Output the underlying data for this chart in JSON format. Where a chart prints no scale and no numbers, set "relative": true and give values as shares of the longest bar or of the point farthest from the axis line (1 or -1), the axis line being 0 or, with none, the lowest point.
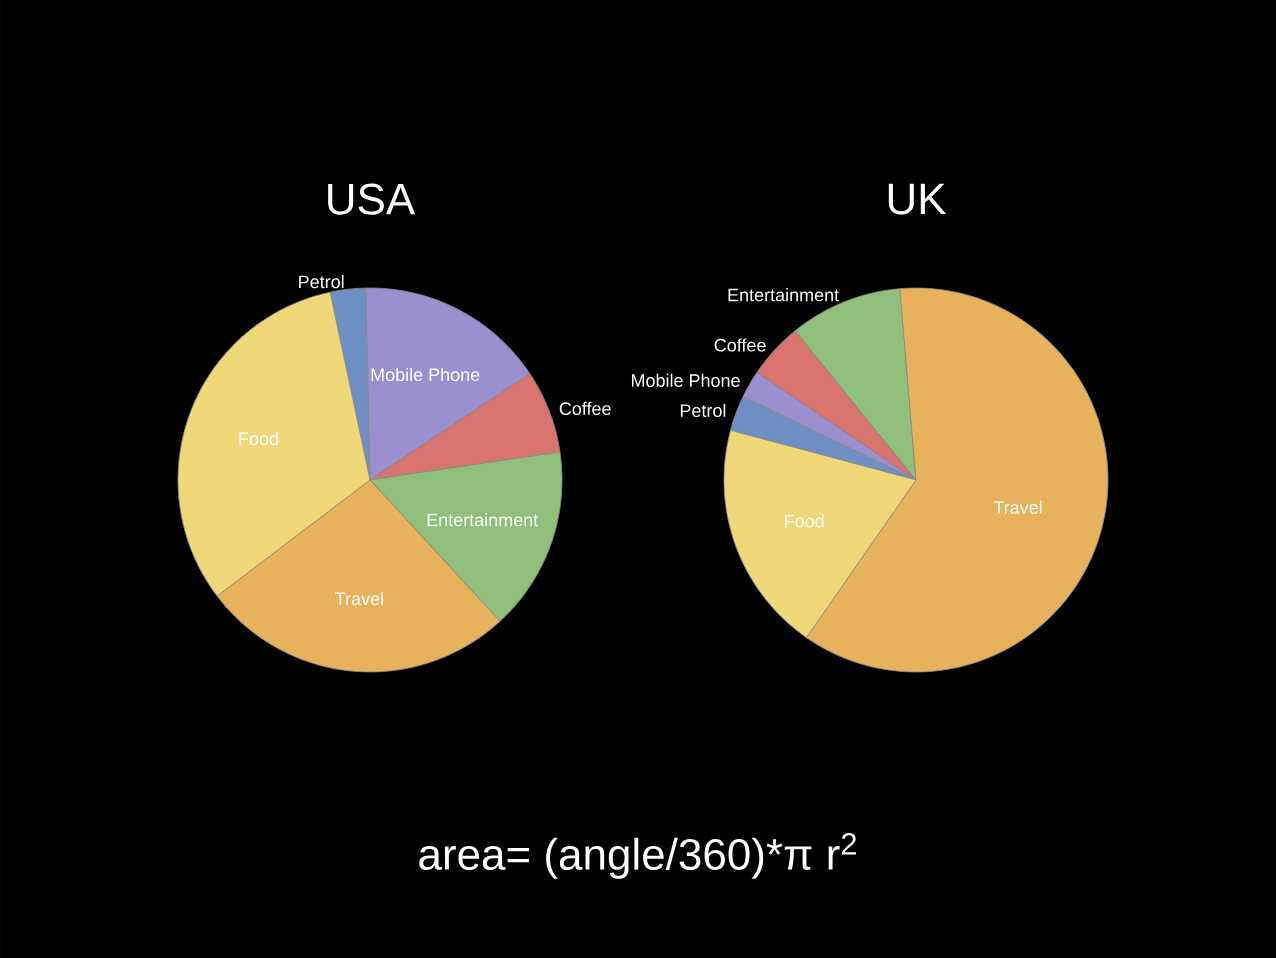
{
  "chart_data": [
    {
      "type": "pie",
      "title": "USA",
      "relative": true,
      "categories": [
        "Petrol",
        "Mobile Phone",
        "Coffee",
        "Entertainment",
        "Travel",
        "Food"
      ],
      "values": [
        3,
        16,
        7,
        15.5,
        26.5,
        32
      ],
      "colors": [
        "#6d8fc4",
        "#9b8fd0",
        "#d9736e",
        "#8fbf7a",
        "#e8b25c",
        "#f0d878"
      ]
    },
    {
      "type": "pie",
      "title": "UK",
      "relative": true,
      "categories": [
        "Petrol",
        "Mobile Phone",
        "Coffee",
        "Entertainment",
        "Travel",
        "Food"
      ],
      "values": [
        3,
        2.3,
        4.7,
        9.5,
        61,
        19.5
      ],
      "colors": [
        "#6d8fc4",
        "#9b8fd0",
        "#d9736e",
        "#8fbf7a",
        "#e8b25c",
        "#f0d878"
      ],
      "annotations": [
        "area= (angle/360)*π r$^{2}$"
      ]
    }
  ]
}
